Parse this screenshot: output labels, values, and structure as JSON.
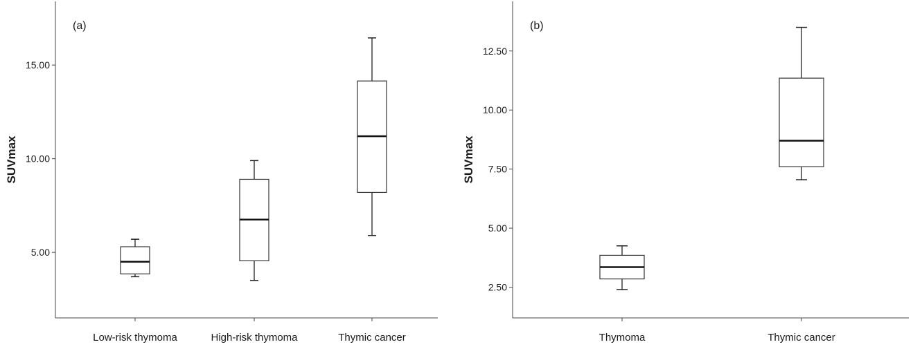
{
  "chart_data": [
    {
      "type": "boxplot",
      "panel_label": "(a)",
      "ylabel": "SUVmax",
      "xlabel": "",
      "ylim": [
        1.5,
        18.4
      ],
      "yticks": [
        5,
        10,
        15
      ],
      "ytick_labels": [
        "5.00",
        "10.00",
        "15.00"
      ],
      "categories": [
        "Low-risk thymoma",
        "High-risk thymoma",
        "Thymic cancer"
      ],
      "boxes": [
        {
          "min": 3.7,
          "q1": 3.85,
          "median": 4.5,
          "q3": 5.3,
          "max": 5.7
        },
        {
          "min": 3.5,
          "q1": 4.55,
          "median": 6.75,
          "q3": 8.9,
          "max": 9.9
        },
        {
          "min": 5.9,
          "q1": 8.2,
          "median": 11.2,
          "q3": 14.15,
          "max": 16.45
        }
      ],
      "grid": false
    },
    {
      "type": "boxplot",
      "panel_label": "(b)",
      "ylabel": "SUVmax",
      "xlabel": "",
      "ylim": [
        1.2,
        14.6
      ],
      "yticks": [
        2.5,
        5,
        7.5,
        10,
        12.5
      ],
      "ytick_labels": [
        "2.50",
        "5.00",
        "7.50",
        "10.00",
        "12.50"
      ],
      "categories": [
        "Thymoma",
        "Thymic cancer"
      ],
      "boxes": [
        {
          "min": 2.4,
          "q1": 2.85,
          "median": 3.35,
          "q3": 3.85,
          "max": 4.25
        },
        {
          "min": 7.05,
          "q1": 7.6,
          "median": 8.7,
          "q3": 11.35,
          "max": 13.5
        }
      ],
      "grid": false
    }
  ]
}
